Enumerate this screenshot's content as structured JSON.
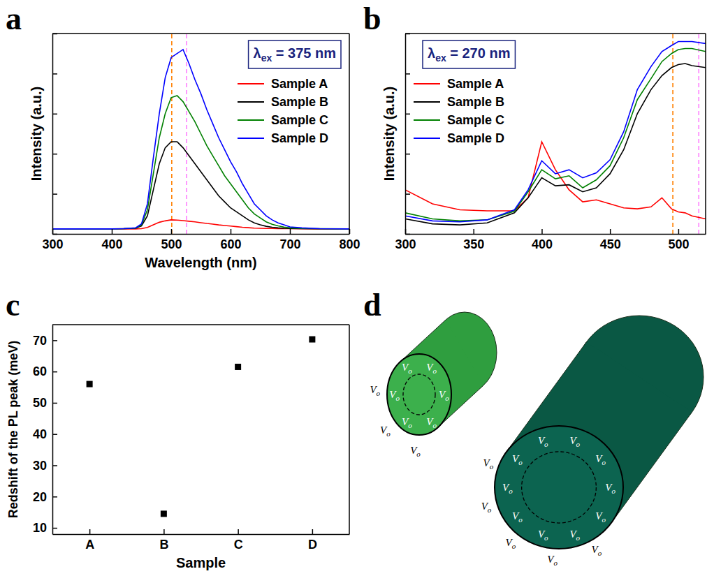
{
  "chart_data": [
    {
      "panel": "a",
      "type": "line",
      "annotation": {
        "symbol": "λ",
        "subscript": "ex",
        "text": " = 375 nm"
      },
      "x_label": "Wavelength (nm)",
      "y_label": "Intensity (a.u.)",
      "x": [
        300,
        350,
        400,
        420,
        440,
        450,
        460,
        470,
        480,
        490,
        500,
        510,
        520,
        530,
        540,
        550,
        560,
        570,
        580,
        590,
        600,
        610,
        620,
        630,
        640,
        650,
        660,
        670,
        680,
        690,
        700,
        720,
        750,
        800
      ],
      "xlim": [
        300,
        800
      ],
      "xticks": [
        300,
        400,
        500,
        600,
        700,
        800
      ],
      "ylim": [
        0,
        100
      ],
      "yticks": [
        0,
        20,
        40,
        60,
        80,
        100
      ],
      "tick_labels": "x",
      "legend": "upper right",
      "series": [
        {
          "name": "Sample A",
          "color": "#ff0000",
          "values": [
            2.5,
            2.5,
            2.5,
            2.5,
            2.5,
            2.6,
            3.2,
            4.5,
            5.8,
            6.5,
            7,
            6.9,
            6.6,
            6.3,
            6,
            5.6,
            5.2,
            4.9,
            4.5,
            4.2,
            3.9,
            3.6,
            3.3,
            3.1,
            2.9,
            2.8,
            2.7,
            2.7,
            2.6,
            2.6,
            2.6,
            2.5,
            2.5,
            2.5
          ]
        },
        {
          "name": "Sample B",
          "color": "#000000",
          "values": [
            2.5,
            2.5,
            2.5,
            2.6,
            2.8,
            4,
            9,
            22,
            35,
            43,
            46,
            46,
            43,
            39,
            35,
            31,
            27,
            23,
            19,
            16,
            13,
            11,
            9,
            7,
            5.5,
            4.5,
            3.8,
            3.3,
            3,
            2.8,
            2.7,
            2.6,
            2.5,
            2.5
          ]
        },
        {
          "name": "Sample C",
          "color": "#008000",
          "values": [
            2.5,
            2.5,
            2.5,
            2.6,
            2.9,
            4.5,
            12,
            30,
            48,
            60,
            68,
            69,
            66,
            61,
            56,
            50,
            44,
            39,
            34,
            29,
            25,
            21,
            17,
            13,
            10,
            8,
            6,
            4.8,
            4,
            3.4,
            3,
            2.7,
            2.6,
            2.5
          ]
        },
        {
          "name": "Sample D",
          "color": "#0000ff",
          "values": [
            2.5,
            2.5,
            2.5,
            2.6,
            3,
            5,
            15,
            38,
            60,
            78,
            88,
            90,
            92,
            85,
            77,
            70,
            62,
            55,
            48,
            42,
            36,
            31,
            25,
            20,
            15,
            12,
            9,
            7,
            5.5,
            4.5,
            3.5,
            3,
            2.6,
            2.5
          ]
        }
      ],
      "reference_lines": [
        {
          "x": 501,
          "color": "#ff8000",
          "line_style": "dashed"
        },
        {
          "x": 526,
          "color": "#ff80ff",
          "line_style": "dashed"
        }
      ]
    },
    {
      "panel": "b",
      "type": "line",
      "annotation": {
        "symbol": "λ",
        "subscript": "ex",
        "text": " = 270 nm"
      },
      "y_label": "Intensity (a.u.)",
      "x": [
        300,
        320,
        340,
        360,
        380,
        390,
        400,
        410,
        420,
        430,
        440,
        450,
        460,
        470,
        480,
        488,
        495,
        500,
        505,
        510,
        520
      ],
      "xlim": [
        300,
        520
      ],
      "xticks": [
        300,
        350,
        400,
        450,
        500
      ],
      "ylim": [
        0,
        100
      ],
      "yticks": [
        0,
        20,
        40,
        60,
        80,
        100
      ],
      "tick_labels": "x",
      "legend": "upper left",
      "series": [
        {
          "name": "Sample A",
          "color": "#ff0000",
          "values": [
            22,
            15,
            12,
            11.5,
            11.5,
            18,
            46,
            32,
            22,
            16,
            17,
            15,
            13,
            12.5,
            13.5,
            18,
            12.5,
            11,
            10.5,
            9,
            7.5
          ]
        },
        {
          "name": "Sample B",
          "color": "#000000",
          "values": [
            7.5,
            5,
            4.5,
            5.5,
            10.5,
            18,
            28,
            24,
            24.5,
            21,
            23,
            30,
            42,
            60,
            72,
            79,
            83,
            84.5,
            85,
            84,
            83
          ]
        },
        {
          "name": "Sample C",
          "color": "#008000",
          "values": [
            10.5,
            7.5,
            6.5,
            7,
            11.3,
            21,
            32,
            27.5,
            29,
            23,
            27,
            34,
            48,
            67,
            77.5,
            86,
            90,
            92,
            92.5,
            92.5,
            91
          ]
        },
        {
          "name": "Sample D",
          "color": "#0000ff",
          "values": [
            9,
            6.5,
            6,
            7,
            12,
            22,
            36.5,
            30,
            32,
            28,
            30.5,
            37,
            51,
            72,
            83.5,
            91,
            94,
            96,
            96,
            96,
            95
          ]
        }
      ],
      "reference_lines": [
        {
          "x": 496,
          "color": "#ff8000",
          "line_style": "dashed"
        },
        {
          "x": 515,
          "color": "#ff80ff",
          "line_style": "dashed"
        }
      ]
    },
    {
      "panel": "c",
      "type": "scatter",
      "x_label": "Sample",
      "y_label": "Redshift of the PL peak (meV)",
      "categories": [
        "A",
        "B",
        "C",
        "D"
      ],
      "values": [
        56,
        14.5,
        61.5,
        70.3
      ],
      "color": "#000000",
      "marker": "square",
      "ylim": [
        8,
        75
      ],
      "yticks": [
        10,
        20,
        30,
        40,
        50,
        60,
        70
      ]
    }
  ],
  "diagram": {
    "panel": "d",
    "label": {
      "symbol": "V",
      "subscript": "o"
    }
  }
}
